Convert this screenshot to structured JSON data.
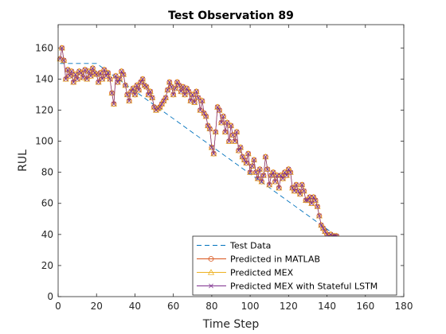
{
  "chart_data": {
    "type": "line",
    "title": "Test Observation 89",
    "xlabel": "Time Step",
    "ylabel": "RUL",
    "xlim": [
      0,
      180
    ],
    "ylim": [
      0,
      175
    ],
    "xticks": [
      0,
      20,
      40,
      60,
      80,
      100,
      120,
      140,
      160,
      180
    ],
    "yticks": [
      0,
      20,
      40,
      60,
      80,
      100,
      120,
      140,
      160
    ],
    "grid": false,
    "legend_position": "bottom-right",
    "series": [
      {
        "name": "Test Data",
        "style": "dashed",
        "color": "#0072BD",
        "x": [
          1,
          20,
          145
        ],
        "y": [
          150,
          150,
          39
        ]
      },
      {
        "name": "Predicted in MATLAB",
        "style": "solid-circle",
        "color": "#D95319",
        "x": [
          1,
          2,
          3,
          4,
          5,
          6,
          7,
          8,
          9,
          10,
          11,
          12,
          13,
          14,
          15,
          16,
          17,
          18,
          19,
          20,
          21,
          22,
          23,
          24,
          25,
          26,
          27,
          28,
          29,
          30,
          31,
          32,
          33,
          34,
          35,
          36,
          37,
          38,
          39,
          40,
          41,
          42,
          43,
          44,
          45,
          46,
          47,
          48,
          49,
          50,
          51,
          52,
          53,
          54,
          55,
          56,
          57,
          58,
          59,
          60,
          61,
          62,
          63,
          64,
          65,
          66,
          67,
          68,
          69,
          70,
          71,
          72,
          73,
          74,
          75,
          76,
          77,
          78,
          79,
          80,
          81,
          82,
          83,
          84,
          85,
          86,
          87,
          88,
          89,
          90,
          91,
          92,
          93,
          94,
          95,
          96,
          97,
          98,
          99,
          100,
          101,
          102,
          103,
          104,
          105,
          106,
          107,
          108,
          109,
          110,
          111,
          112,
          113,
          114,
          115,
          116,
          117,
          118,
          119,
          120,
          121,
          122,
          123,
          124,
          125,
          126,
          127,
          128,
          129,
          130,
          131,
          132,
          133,
          134,
          135,
          136,
          137,
          138,
          139,
          140,
          141,
          142,
          143,
          144,
          145
        ],
        "y": [
          153,
          160,
          152,
          140,
          146,
          142,
          145,
          138,
          143,
          140,
          145,
          144,
          141,
          146,
          140,
          145,
          142,
          147,
          144,
          143,
          138,
          144,
          140,
          146,
          142,
          144,
          140,
          131,
          124,
          142,
          138,
          140,
          145,
          143,
          136,
          130,
          126,
          132,
          134,
          130,
          136,
          133,
          138,
          140,
          136,
          135,
          130,
          132,
          128,
          122,
          120,
          121,
          122,
          124,
          126,
          128,
          133,
          138,
          135,
          130,
          134,
          138,
          136,
          132,
          135,
          130,
          134,
          132,
          126,
          130,
          125,
          132,
          128,
          120,
          126,
          118,
          116,
          110,
          108,
          96,
          92,
          106,
          122,
          120,
          112,
          116,
          106,
          112,
          100,
          110,
          104,
          100,
          106,
          94,
          96,
          90,
          88,
          86,
          92,
          80,
          84,
          88,
          80,
          76,
          82,
          74,
          78,
          90,
          82,
          72,
          78,
          80,
          74,
          78,
          70,
          78,
          76,
          80,
          78,
          82,
          80,
          70,
          68,
          72,
          68,
          66,
          72,
          68,
          62,
          62,
          64,
          60,
          64,
          62,
          58,
          52,
          46,
          44,
          42,
          40,
          39,
          40,
          39,
          39,
          39
        ]
      },
      {
        "name": "Predicted MEX",
        "style": "solid-triangle",
        "color": "#EDB120",
        "x": [
          1,
          2,
          3,
          4,
          5,
          6,
          7,
          8,
          9,
          10,
          11,
          12,
          13,
          14,
          15,
          16,
          17,
          18,
          19,
          20,
          21,
          22,
          23,
          24,
          25,
          26,
          27,
          28,
          29,
          30,
          31,
          32,
          33,
          34,
          35,
          36,
          37,
          38,
          39,
          40,
          41,
          42,
          43,
          44,
          45,
          46,
          47,
          48,
          49,
          50,
          51,
          52,
          53,
          54,
          55,
          56,
          57,
          58,
          59,
          60,
          61,
          62,
          63,
          64,
          65,
          66,
          67,
          68,
          69,
          70,
          71,
          72,
          73,
          74,
          75,
          76,
          77,
          78,
          79,
          80,
          81,
          82,
          83,
          84,
          85,
          86,
          87,
          88,
          89,
          90,
          91,
          92,
          93,
          94,
          95,
          96,
          97,
          98,
          99,
          100,
          101,
          102,
          103,
          104,
          105,
          106,
          107,
          108,
          109,
          110,
          111,
          112,
          113,
          114,
          115,
          116,
          117,
          118,
          119,
          120,
          121,
          122,
          123,
          124,
          125,
          126,
          127,
          128,
          129,
          130,
          131,
          132,
          133,
          134,
          135,
          136,
          137,
          138,
          139,
          140,
          141,
          142,
          143,
          144,
          145
        ],
        "y": [
          153,
          160,
          152,
          140,
          146,
          142,
          145,
          138,
          143,
          140,
          145,
          144,
          141,
          146,
          140,
          145,
          142,
          147,
          144,
          143,
          138,
          144,
          140,
          146,
          142,
          144,
          140,
          131,
          124,
          142,
          138,
          140,
          145,
          143,
          136,
          130,
          126,
          132,
          134,
          130,
          136,
          133,
          138,
          140,
          136,
          135,
          130,
          132,
          128,
          122,
          120,
          121,
          122,
          124,
          126,
          128,
          133,
          138,
          135,
          130,
          134,
          138,
          136,
          132,
          135,
          130,
          134,
          132,
          126,
          130,
          125,
          132,
          128,
          120,
          126,
          118,
          116,
          110,
          108,
          96,
          92,
          106,
          122,
          120,
          112,
          116,
          106,
          112,
          100,
          110,
          104,
          100,
          106,
          94,
          96,
          90,
          88,
          86,
          92,
          80,
          84,
          88,
          80,
          76,
          82,
          74,
          78,
          90,
          82,
          72,
          78,
          80,
          74,
          78,
          70,
          78,
          76,
          80,
          78,
          82,
          80,
          70,
          68,
          72,
          68,
          66,
          72,
          68,
          62,
          62,
          64,
          60,
          64,
          62,
          58,
          52,
          46,
          44,
          42,
          40,
          39,
          40,
          39,
          39,
          39
        ]
      },
      {
        "name": "Predicted MEX with Stateful LSTM",
        "style": "solid-x",
        "color": "#7E2F8E",
        "x": [
          1,
          2,
          3,
          4,
          5,
          6,
          7,
          8,
          9,
          10,
          11,
          12,
          13,
          14,
          15,
          16,
          17,
          18,
          19,
          20,
          21,
          22,
          23,
          24,
          25,
          26,
          27,
          28,
          29,
          30,
          31,
          32,
          33,
          34,
          35,
          36,
          37,
          38,
          39,
          40,
          41,
          42,
          43,
          44,
          45,
          46,
          47,
          48,
          49,
          50,
          51,
          52,
          53,
          54,
          55,
          56,
          57,
          58,
          59,
          60,
          61,
          62,
          63,
          64,
          65,
          66,
          67,
          68,
          69,
          70,
          71,
          72,
          73,
          74,
          75,
          76,
          77,
          78,
          79,
          80,
          81,
          82,
          83,
          84,
          85,
          86,
          87,
          88,
          89,
          90,
          91,
          92,
          93,
          94,
          95,
          96,
          97,
          98,
          99,
          100,
          101,
          102,
          103,
          104,
          105,
          106,
          107,
          108,
          109,
          110,
          111,
          112,
          113,
          114,
          115,
          116,
          117,
          118,
          119,
          120,
          121,
          122,
          123,
          124,
          125,
          126,
          127,
          128,
          129,
          130,
          131,
          132,
          133,
          134,
          135,
          136,
          137,
          138,
          139,
          140,
          141,
          142,
          143,
          144,
          145
        ],
        "y": [
          153,
          160,
          152,
          140,
          146,
          142,
          145,
          138,
          143,
          140,
          145,
          144,
          141,
          146,
          140,
          145,
          142,
          147,
          144,
          143,
          138,
          144,
          140,
          146,
          142,
          144,
          140,
          131,
          124,
          142,
          138,
          140,
          145,
          143,
          136,
          130,
          126,
          132,
          134,
          130,
          136,
          133,
          138,
          140,
          136,
          135,
          130,
          132,
          128,
          122,
          120,
          121,
          122,
          124,
          126,
          128,
          133,
          138,
          135,
          130,
          134,
          138,
          136,
          132,
          135,
          130,
          134,
          132,
          126,
          130,
          125,
          132,
          128,
          120,
          126,
          118,
          116,
          110,
          108,
          96,
          92,
          106,
          122,
          120,
          112,
          116,
          106,
          112,
          100,
          110,
          104,
          100,
          106,
          94,
          96,
          90,
          88,
          86,
          92,
          80,
          84,
          88,
          80,
          76,
          82,
          74,
          78,
          90,
          82,
          72,
          78,
          80,
          74,
          78,
          70,
          78,
          76,
          80,
          78,
          82,
          80,
          70,
          68,
          72,
          68,
          66,
          72,
          68,
          62,
          62,
          64,
          60,
          64,
          62,
          58,
          52,
          46,
          44,
          42,
          40,
          39,
          40,
          39,
          39,
          39
        ]
      }
    ]
  }
}
